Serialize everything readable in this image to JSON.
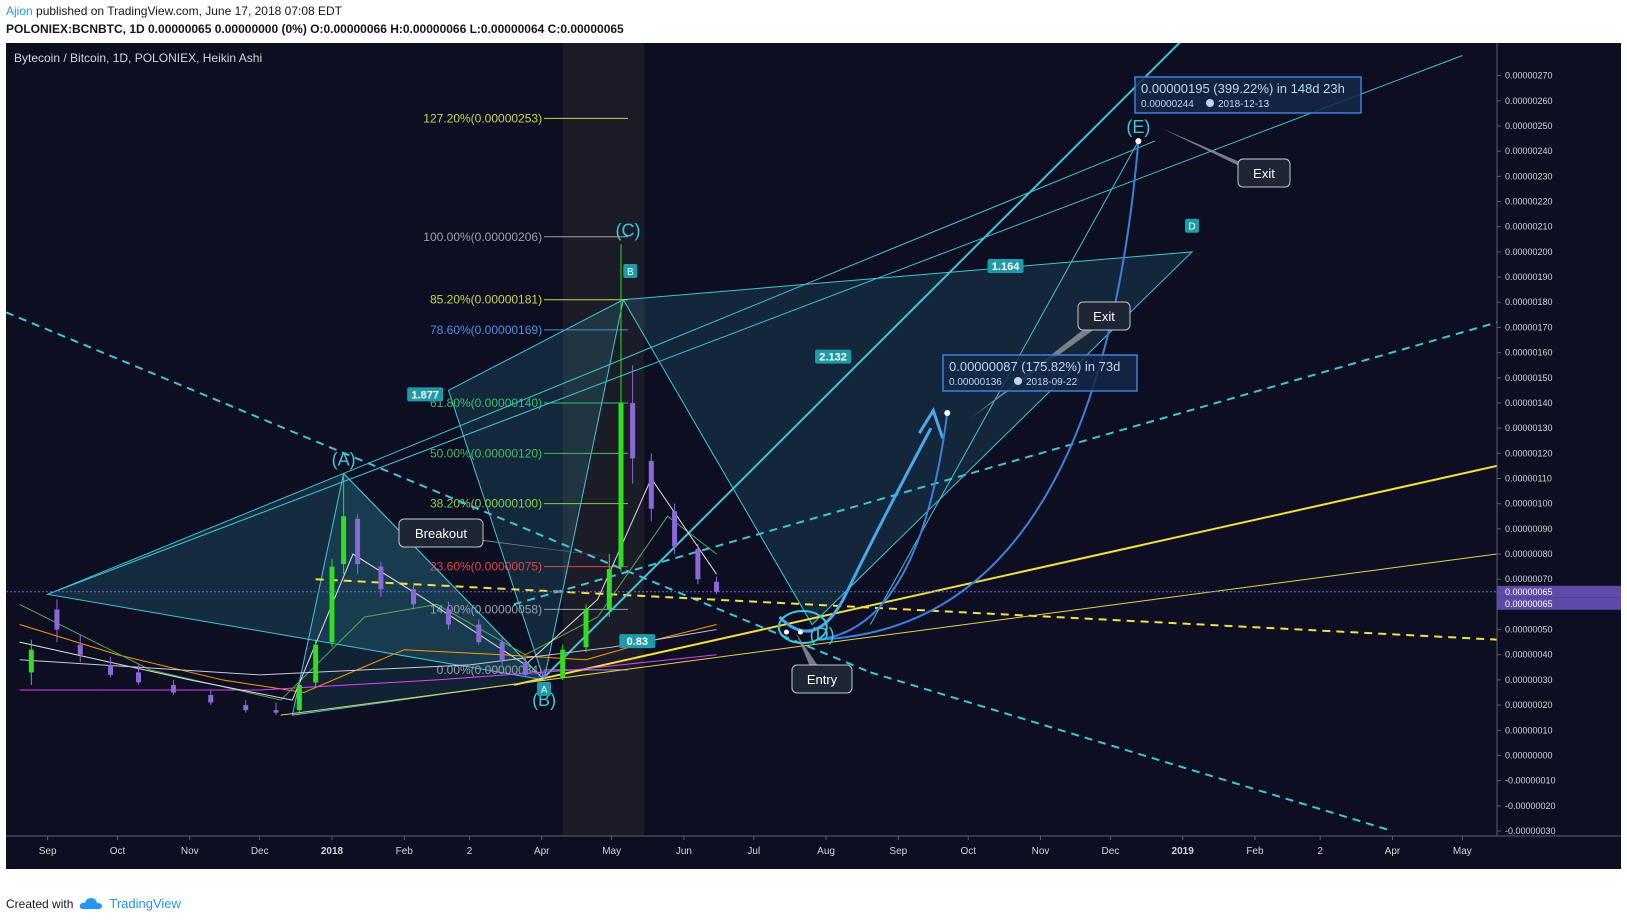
{
  "header": {
    "author": "Ajion",
    "published": "published on TradingView.com, June 17, 2018 07:08 EDT",
    "ohlc": "POLONIEX:BCNBTC, 1D  0.00000065  0.00000000 (0%)  O:0.00000066  H:0.00000066  L:0.00000064  C:0.00000065"
  },
  "footer": {
    "created_with": "Created with",
    "brand": "TradingView"
  },
  "chart_data": {
    "type": "candlestick",
    "title": "Bytecoin / Bitcoin, 1D, POLONIEX, Heikin Ashi",
    "x_ticks": [
      "Sep",
      "Oct",
      "Nov",
      "Dec",
      "2018",
      "Feb",
      "2",
      "Apr",
      "May",
      "Jun",
      "Jul",
      "Aug",
      "Sep",
      "Oct",
      "Nov",
      "Dec",
      "2019",
      "Feb",
      "2",
      "Apr",
      "May"
    ],
    "y_ticks": [
      "0.00000270",
      "0.00000260",
      "0.00000250",
      "0.00000240",
      "0.00000230",
      "0.00000220",
      "0.00000210",
      "0.00000200",
      "0.00000190",
      "0.00000180",
      "0.00000170",
      "0.00000160",
      "0.00000150",
      "0.00000140",
      "0.00000130",
      "0.00000120",
      "0.00000110",
      "0.00000100",
      "0.00000090",
      "0.00000080",
      "0.00000070",
      "0.00000060",
      "0.00000050",
      "0.00000040",
      "0.00000030",
      "0.00000020",
      "0.00000010",
      "0.00000000",
      "-0.00000010",
      "-0.00000020",
      "-0.00000030"
    ],
    "ylim": [
      -3e-07,
      2.77e-06
    ],
    "price_tags": [
      "0.00000065",
      "0.00000065"
    ],
    "fib_levels": [
      {
        "label": "127.20%(0.00000253)",
        "value": 2.53e-06,
        "color": "#c0d848"
      },
      {
        "label": "100.00%(0.00000206)",
        "value": 2.06e-06,
        "color": "#9aa0aa"
      },
      {
        "label": "85.20%(0.00000181)",
        "value": 1.81e-06,
        "color": "#c0d848"
      },
      {
        "label": "78.60%(0.00000169)",
        "value": 1.69e-06,
        "color": "#4a90e2"
      },
      {
        "label": "61.80%(0.00000140)",
        "value": 1.4e-06,
        "color": "#33c070"
      },
      {
        "label": "50.00%(0.00000120)",
        "value": 1.2e-06,
        "color": "#44bb66"
      },
      {
        "label": "38.20%(0.00000100)",
        "value": 1e-06,
        "color": "#88cc44"
      },
      {
        "label": "23.60%(0.00000075)",
        "value": 7.5e-07,
        "color": "#dd4444"
      },
      {
        "label": "14.00%(0.00000058)",
        "value": 5.8e-07,
        "color": "#9aa0aa"
      },
      {
        "label": "0.00%(0.00000034)",
        "value": 3.4e-07,
        "color": "#9aa0aa"
      }
    ],
    "pattern_points": [
      {
        "label": "(A)",
        "date": "2018-01-06",
        "value": 1.12e-06
      },
      {
        "label": "(B)",
        "date": "2018-04-02",
        "value": 3e-07
      },
      {
        "label": "(C)",
        "date": "2018-05-08",
        "value": 2.03e-06
      },
      {
        "label": "(D)",
        "date": "2018-07-26",
        "value": 4.8e-07
      },
      {
        "label": "(E)",
        "date": "2018-12-13",
        "value": 2.44e-06
      }
    ],
    "harmonic_labels": [
      "A",
      "B",
      "D"
    ],
    "ratios": [
      "1.877",
      "2.132",
      "1.164",
      "0.83"
    ],
    "callouts": [
      "Breakout",
      "Entry",
      "Exit",
      "Exit"
    ],
    "measures": [
      {
        "line1": "0.00000195 (399.22%) in 148d 23h",
        "line2": "0.00000244",
        "date": "2018-12-13"
      },
      {
        "line1": "0.00000087 (175.82%) in 73d",
        "line2": "0.00000136",
        "date": "2018-09-22"
      }
    ],
    "candles": [
      {
        "d": "2017-08-25",
        "o": 3.3e-07,
        "h": 4.6e-07,
        "l": 2.8e-07,
        "c": 4.2e-07
      },
      {
        "d": "2017-09-05",
        "o": 5.8e-07,
        "h": 6.2e-07,
        "l": 4.5e-07,
        "c": 5e-07
      },
      {
        "d": "2017-09-15",
        "o": 4.4e-07,
        "h": 4.8e-07,
        "l": 3.7e-07,
        "c": 4e-07
      },
      {
        "d": "2017-09-28",
        "o": 3.6e-07,
        "h": 3.9e-07,
        "l": 3.1e-07,
        "c": 3.2e-07
      },
      {
        "d": "2017-10-10",
        "o": 3.3e-07,
        "h": 3.6e-07,
        "l": 2.8e-07,
        "c": 2.9e-07
      },
      {
        "d": "2017-10-25",
        "o": 2.8e-07,
        "h": 3e-07,
        "l": 2.4e-07,
        "c": 2.5e-07
      },
      {
        "d": "2017-11-10",
        "o": 2.4e-07,
        "h": 2.6e-07,
        "l": 2e-07,
        "c": 2.1e-07
      },
      {
        "d": "2017-11-25",
        "o": 2e-07,
        "h": 2.2e-07,
        "l": 1.7e-07,
        "c": 1.8e-07
      },
      {
        "d": "2017-12-08",
        "o": 1.8e-07,
        "h": 2.1e-07,
        "l": 1.6e-07,
        "c": 1.7e-07
      },
      {
        "d": "2017-12-18",
        "o": 1.8e-07,
        "h": 3e-07,
        "l": 1.6e-07,
        "c": 2.8e-07
      },
      {
        "d": "2017-12-25",
        "o": 2.9e-07,
        "h": 4.6e-07,
        "l": 2.7e-07,
        "c": 4.4e-07
      },
      {
        "d": "2018-01-01",
        "o": 4.5e-07,
        "h": 7.8e-07,
        "l": 4.3e-07,
        "c": 7.5e-07
      },
      {
        "d": "2018-01-06",
        "o": 7.6e-07,
        "h": 1.12e-06,
        "l": 7.2e-07,
        "c": 9.5e-07
      },
      {
        "d": "2018-01-12",
        "o": 9.4e-07,
        "h": 9.6e-07,
        "l": 7.2e-07,
        "c": 7.6e-07
      },
      {
        "d": "2018-01-22",
        "o": 7.5e-07,
        "h": 7.7e-07,
        "l": 6.3e-07,
        "c": 6.6e-07
      },
      {
        "d": "2018-02-05",
        "o": 6.6e-07,
        "h": 6.8e-07,
        "l": 5.8e-07,
        "c": 6e-07
      },
      {
        "d": "2018-02-20",
        "o": 5.8e-07,
        "h": 6.1e-07,
        "l": 5e-07,
        "c": 5.2e-07
      },
      {
        "d": "2018-03-05",
        "o": 5.2e-07,
        "h": 5.4e-07,
        "l": 4.4e-07,
        "c": 4.5e-07
      },
      {
        "d": "2018-03-15",
        "o": 4.5e-07,
        "h": 4.7e-07,
        "l": 3.6e-07,
        "c": 3.8e-07
      },
      {
        "d": "2018-03-25",
        "o": 3.7e-07,
        "h": 3.9e-07,
        "l": 3.1e-07,
        "c": 3.2e-07
      },
      {
        "d": "2018-04-02",
        "o": 3.2e-07,
        "h": 3.4e-07,
        "l": 3e-07,
        "c": 3.1e-07
      },
      {
        "d": "2018-04-10",
        "o": 3.1e-07,
        "h": 4.4e-07,
        "l": 3e-07,
        "c": 4.2e-07
      },
      {
        "d": "2018-04-20",
        "o": 4.3e-07,
        "h": 6e-07,
        "l": 4.1e-07,
        "c": 5.8e-07
      },
      {
        "d": "2018-04-30",
        "o": 5.8e-07,
        "h": 8e-07,
        "l": 5.5e-07,
        "c": 7.4e-07
      },
      {
        "d": "2018-05-05",
        "o": 7.5e-07,
        "h": 2.03e-06,
        "l": 7.3e-07,
        "c": 1.4e-06
      },
      {
        "d": "2018-05-10",
        "o": 1.4e-06,
        "h": 1.55e-06,
        "l": 1.08e-06,
        "c": 1.18e-06
      },
      {
        "d": "2018-05-18",
        "o": 1.17e-06,
        "h": 1.2e-06,
        "l": 9.3e-07,
        "c": 9.8e-07
      },
      {
        "d": "2018-05-28",
        "o": 9.7e-07,
        "h": 1e-06,
        "l": 8e-07,
        "c": 8.3e-07
      },
      {
        "d": "2018-06-07",
        "o": 8.2e-07,
        "h": 8.4e-07,
        "l": 6.8e-07,
        "c": 7e-07
      },
      {
        "d": "2018-06-15",
        "o": 6.9e-07,
        "h": 7.1e-07,
        "l": 6.4e-07,
        "c": 6.5e-07
      }
    ]
  }
}
